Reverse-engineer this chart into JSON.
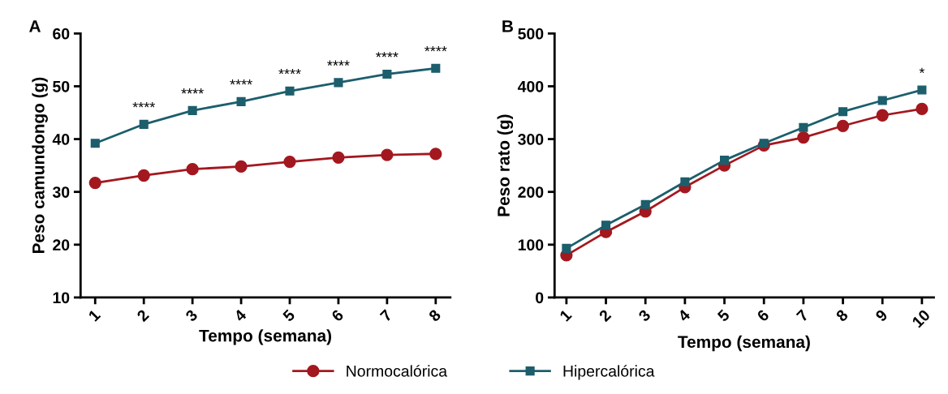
{
  "chart_data": [
    {
      "type": "line",
      "title": "A",
      "xlabel": "Tempo (semana)",
      "ylabel": "Peso camundongo (g)",
      "categories": [
        "1",
        "2",
        "3",
        "4",
        "5",
        "6",
        "7",
        "8"
      ],
      "ylim": [
        10,
        60
      ],
      "yticks": [
        10,
        20,
        30,
        40,
        50,
        60
      ],
      "grid": false,
      "legend": "bottom",
      "series": [
        {
          "name": "Normocalórica",
          "color": "#a3181f",
          "marker": "circle",
          "values": [
            31.7,
            33.1,
            34.3,
            34.8,
            35.7,
            36.5,
            37.0,
            37.2
          ]
        },
        {
          "name": "Hipercalórica",
          "color": "#1c5e6c",
          "marker": "square",
          "values": [
            39.2,
            42.8,
            45.4,
            47.1,
            49.1,
            50.7,
            52.3,
            53.4
          ]
        }
      ],
      "annotations": [
        {
          "text": "****",
          "x": "2",
          "y": 42.8
        },
        {
          "text": "****",
          "x": "3",
          "y": 45.4
        },
        {
          "text": "****",
          "x": "4",
          "y": 47.1
        },
        {
          "text": "****",
          "x": "5",
          "y": 49.1
        },
        {
          "text": "****",
          "x": "6",
          "y": 50.7
        },
        {
          "text": "****",
          "x": "7",
          "y": 52.3
        },
        {
          "text": "****",
          "x": "8",
          "y": 53.4
        }
      ]
    },
    {
      "type": "line",
      "title": "B",
      "xlabel": "Tempo (semana)",
      "ylabel": "Peso rato (g)",
      "categories": [
        "1",
        "2",
        "3",
        "4",
        "5",
        "6",
        "7",
        "8",
        "9",
        "10"
      ],
      "ylim": [
        0,
        500
      ],
      "yticks": [
        0,
        100,
        200,
        300,
        400,
        500
      ],
      "grid": false,
      "series": [
        {
          "color": "#a3181f",
          "marker": "circle",
          "values": [
            80,
            124,
            163,
            209,
            250,
            288,
            303,
            325,
            345,
            357
          ]
        },
        {
          "color": "#1c5e6c",
          "marker": "square",
          "values": [
            93,
            137,
            176,
            219,
            260,
            292,
            322,
            352,
            373,
            393
          ]
        }
      ],
      "annotations": [
        {
          "text": "*",
          "x": "10",
          "y": 393
        }
      ]
    }
  ]
}
